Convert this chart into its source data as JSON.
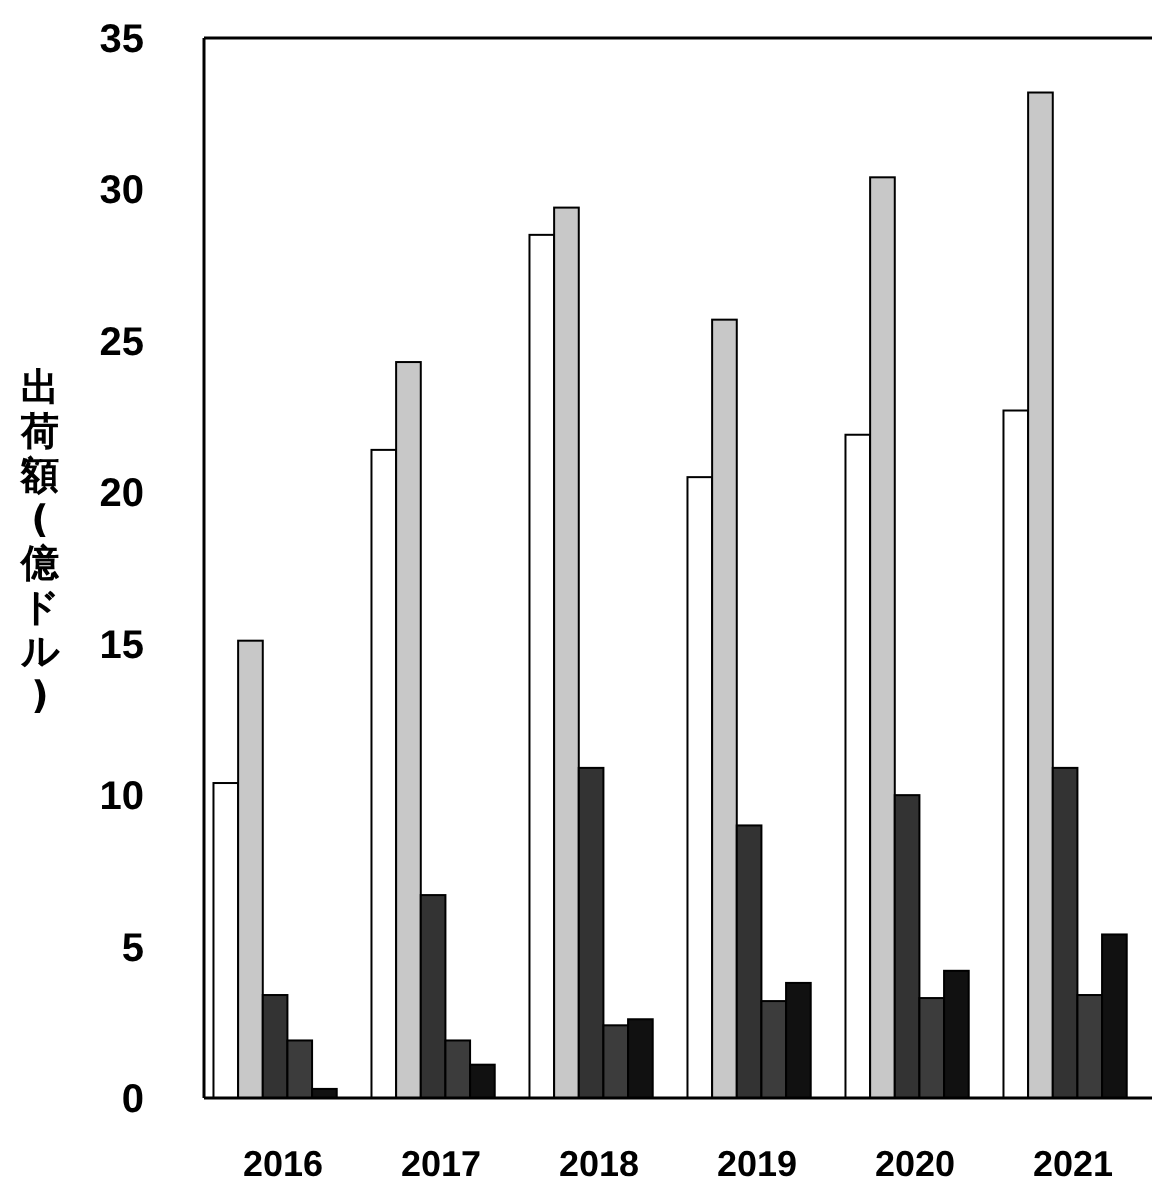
{
  "chart_data": {
    "type": "bar",
    "ylabel": "出荷額(億ドル)",
    "categories": [
      "2016",
      "2017",
      "2018",
      "2019",
      "2020",
      "2021"
    ],
    "ylim": [
      0,
      35
    ],
    "yticks": [
      0,
      5,
      10,
      15,
      20,
      25,
      30,
      35
    ],
    "series": [
      {
        "color": "#ffffff",
        "values": [
          10.4,
          21.4,
          28.5,
          20.5,
          21.9,
          22.7
        ]
      },
      {
        "color": "#c8c8c8",
        "values": [
          15.1,
          24.3,
          29.4,
          25.7,
          30.4,
          33.2
        ]
      },
      {
        "color": "#333333",
        "values": [
          3.4,
          6.7,
          10.9,
          9.0,
          10.0,
          10.9
        ]
      },
      {
        "color": "#3c3c3c",
        "values": [
          1.9,
          1.9,
          2.4,
          3.2,
          3.3,
          3.4
        ]
      },
      {
        "color": "#111111",
        "values": [
          0.3,
          1.1,
          2.6,
          3.8,
          4.2,
          5.4
        ]
      }
    ]
  }
}
